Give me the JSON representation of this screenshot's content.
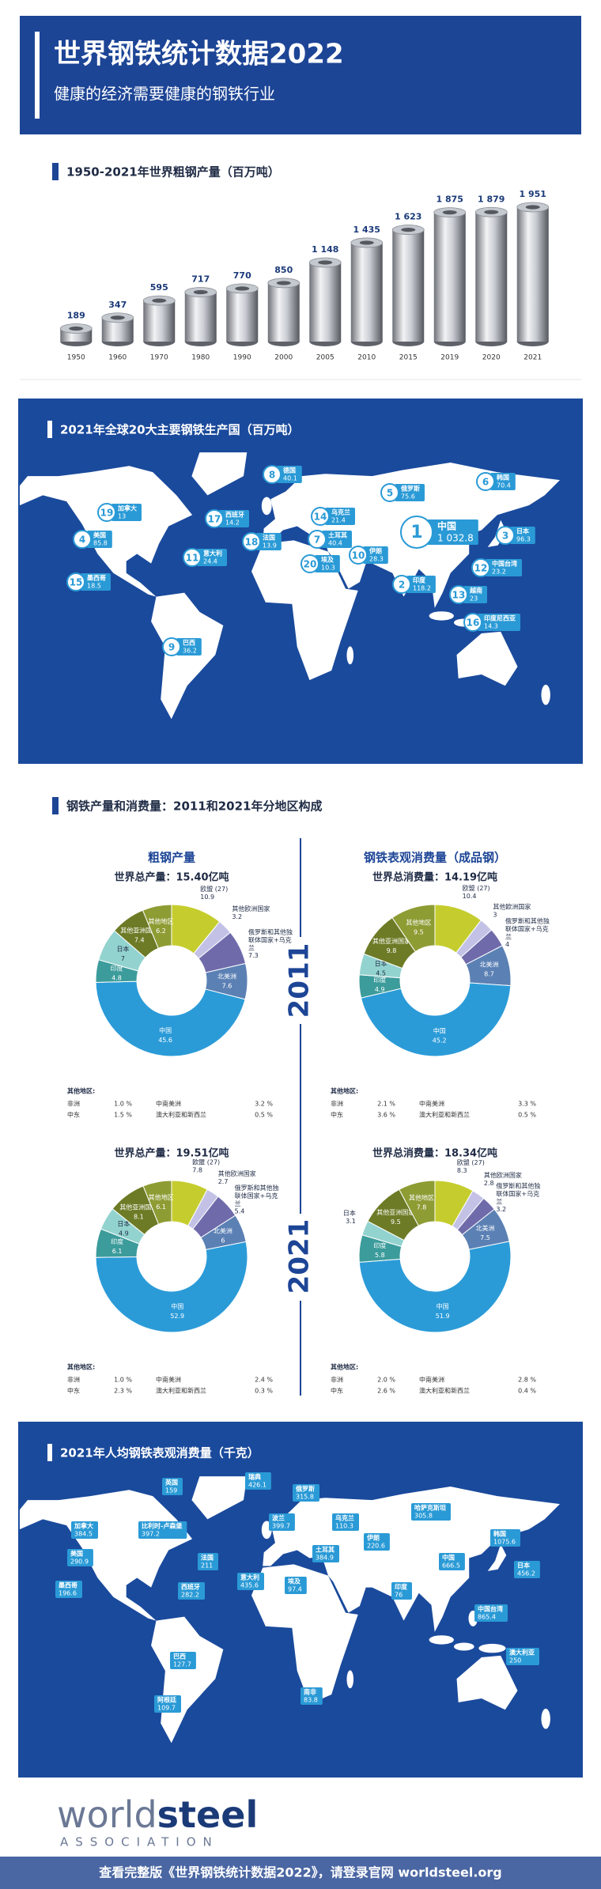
{
  "header": {
    "title": "世界钢铁统计数据2022",
    "subtitle": "健康的经济需要健康的钢铁行业"
  },
  "chart_data": [
    {
      "type": "bar",
      "title": "1950-2021年世界粗钢产量（百万吨）",
      "categories": [
        "1950",
        "1960",
        "1970",
        "1980",
        "1990",
        "2000",
        "2005",
        "2010",
        "2015",
        "2019",
        "2020",
        "2021"
      ],
      "values": [
        189,
        347,
        595,
        717,
        770,
        850,
        1148,
        1435,
        1623,
        1875,
        1879,
        1951
      ],
      "value_labels": [
        "189",
        "347",
        "595",
        "717",
        "770",
        "850",
        "1 148",
        "1 435",
        "1 623",
        "1 875",
        "1 879",
        "1 951"
      ],
      "color": "#c4c8cf"
    },
    {
      "type": "pie",
      "total": "世界总产量：15.40亿吨",
      "categories": [
        "欧盟 (27)",
        "其他欧洲国家",
        "俄罗斯和其他独联体国家+乌克兰",
        "北美洲",
        "中国",
        "印度",
        "日本",
        "其他亚洲国家",
        "其他地区"
      ],
      "values": [
        10.9,
        3.2,
        7.3,
        7.6,
        45.6,
        4.8,
        7.0,
        7.4,
        6.2
      ],
      "colors": [
        "#c5cd2e",
        "#c3c2e6",
        "#6f6bab",
        "#5b80b4",
        "#2b9bd8",
        "#3c9c9b",
        "#93d3cf",
        "#6d7b26",
        "#8e9c34"
      ],
      "notes": [
        {
          "name": "非洲",
          "value": "1.0 %"
        },
        {
          "name": "中东",
          "value": "1.5 %"
        },
        {
          "name": "中南美洲",
          "value": "3.2 %"
        },
        {
          "name": "澳大利亚和新西兰",
          "value": "0.5 %"
        }
      ]
    },
    {
      "type": "pie",
      "total": "世界总消费量：14.19亿吨",
      "categories": [
        "欧盟 (27)",
        "其他欧洲国家",
        "俄罗斯和其他独联体国家+乌克兰",
        "北美洲",
        "中国",
        "印度",
        "日本",
        "其他亚洲国家",
        "其他地区"
      ],
      "values": [
        10.4,
        3.0,
        4.0,
        8.7,
        45.2,
        4.9,
        4.5,
        9.8,
        9.5
      ],
      "colors": [
        "#c5cd2e",
        "#c3c2e6",
        "#6f6bab",
        "#5b80b4",
        "#2b9bd8",
        "#3c9c9b",
        "#93d3cf",
        "#6d7b26",
        "#8e9c34"
      ],
      "notes": [
        {
          "name": "非洲",
          "value": "2.1 %"
        },
        {
          "name": "中东",
          "value": "3.6 %"
        },
        {
          "name": "中南美洲",
          "value": "3.3 %"
        },
        {
          "name": "澳大利亚和新西兰",
          "value": "0.5 %"
        }
      ]
    },
    {
      "type": "pie",
      "total": "世界总产量：19.51亿吨",
      "categories": [
        "欧盟 (27)",
        "其他欧洲国家",
        "俄罗斯和其他独联体国家+乌克兰",
        "北美洲",
        "中国",
        "印度",
        "日本",
        "其他亚洲国家",
        "其他地区"
      ],
      "values": [
        7.8,
        2.7,
        5.4,
        6.0,
        52.9,
        6.1,
        4.9,
        8.1,
        6.1
      ],
      "colors": [
        "#c5cd2e",
        "#c3c2e6",
        "#6f6bab",
        "#5b80b4",
        "#2b9bd8",
        "#3c9c9b",
        "#93d3cf",
        "#6d7b26",
        "#8e9c34"
      ],
      "notes": [
        {
          "name": "非洲",
          "value": "1.0 %"
        },
        {
          "name": "中东",
          "value": "2.3 %"
        },
        {
          "name": "中南美洲",
          "value": "2.4 %"
        },
        {
          "name": "澳大利亚和新西兰",
          "value": "0.3 %"
        }
      ]
    },
    {
      "type": "pie",
      "total": "世界总消费量：18.34亿吨",
      "categories": [
        "欧盟 (27)",
        "其他欧洲国家",
        "俄罗斯和其他独联体国家+乌克兰",
        "北美洲",
        "中国",
        "印度",
        "日本",
        "其他亚洲国家",
        "其他地区"
      ],
      "values": [
        8.3,
        2.8,
        3.2,
        7.5,
        51.9,
        5.8,
        3.1,
        9.5,
        7.8
      ],
      "colors": [
        "#c5cd2e",
        "#c3c2e6",
        "#6f6bab",
        "#5b80b4",
        "#2b9bd8",
        "#3c9c9b",
        "#93d3cf",
        "#6d7b26",
        "#8e9c34"
      ],
      "notes": [
        {
          "name": "非洲",
          "value": "2.0 %"
        },
        {
          "name": "中东",
          "value": "2.6 %"
        },
        {
          "name": "中南美洲",
          "value": "2.8 %"
        },
        {
          "name": "澳大利亚和新西兰",
          "value": "0.4 %"
        }
      ]
    }
  ],
  "producers": {
    "title": "2021年全球20大主要钢铁生产国（百万吨）",
    "markers": [
      {
        "rank": 1,
        "name": "中国",
        "value": {
          "value": 1032.8,
          "label": "1 032.8"
        }
      },
      {
        "rank": 2,
        "name": "印度",
        "value": 118.2
      },
      {
        "rank": 3,
        "name": "日本",
        "value": 96.3
      },
      {
        "rank": 4,
        "name": "美国",
        "value": 85.8
      },
      {
        "rank": 5,
        "name": "俄罗斯",
        "value": 75.6
      },
      {
        "rank": 6,
        "name": "韩国",
        "value": 70.4
      },
      {
        "rank": 7,
        "name": "土耳其",
        "value": 40.4
      },
      {
        "rank": 8,
        "name": "德国",
        "value": 40.1
      },
      {
        "rank": 9,
        "name": "巴西",
        "value": 36.2
      },
      {
        "rank": 10,
        "name": "伊朗",
        "value": 28.3
      },
      {
        "rank": 11,
        "name": "意大利",
        "value": 24.4
      },
      {
        "rank": 12,
        "name": "中国台湾",
        "value": 23.2
      },
      {
        "rank": 13,
        "name": "越南",
        "value": 23.0
      },
      {
        "rank": 14,
        "name": "乌克兰",
        "value": 21.4
      },
      {
        "rank": 15,
        "name": "墨西哥",
        "value": 18.5
      },
      {
        "rank": 16,
        "name": "印度尼西亚",
        "value": 14.3
      },
      {
        "rank": 17,
        "name": "西班牙",
        "value": 14.2
      },
      {
        "rank": 18,
        "name": "法国",
        "value": 13.9
      },
      {
        "rank": 19,
        "name": "加拿大",
        "value": 13.0
      },
      {
        "rank": 20,
        "name": "埃及",
        "value": 10.3
      }
    ]
  },
  "regional": {
    "title": "钢铁产量和消费量：2011和2021年分地区构成",
    "columns": [
      "粗钢产量",
      "钢铁表观消费量（成品钢）"
    ],
    "years": [
      "2011",
      "2021"
    ],
    "notes_title": "其他地区:"
  },
  "per_capita": {
    "title": "2021年人均钢铁表观消费量（千克）",
    "markers": [
      {
        "name": "加拿大",
        "value": 384.5
      },
      {
        "name": "美国",
        "value": 290.9
      },
      {
        "name": "墨西哥",
        "value": 196.6
      },
      {
        "name": "英国",
        "value": 159.0
      },
      {
        "name": "比利时-卢森堡",
        "value": 397.2
      },
      {
        "name": "法国",
        "value": 211.0
      },
      {
        "name": "西班牙",
        "value": 282.2
      },
      {
        "name": "意大利",
        "value": 435.6
      },
      {
        "name": "瑞典",
        "value": 426.1
      },
      {
        "name": "俄罗斯",
        "value": 315.8
      },
      {
        "name": "波兰",
        "value": 399.7
      },
      {
        "name": "乌克兰",
        "value": 110.3
      },
      {
        "name": "土耳其",
        "value": 384.9
      },
      {
        "name": "伊朗",
        "value": 220.6
      },
      {
        "name": "埃及",
        "value": 97.4
      },
      {
        "name": "哈萨克斯坦",
        "value": 305.8
      },
      {
        "name": "印度",
        "value": 76.0
      },
      {
        "name": "中国",
        "value": 666.5
      },
      {
        "name": "韩国",
        "value": 1075.6
      },
      {
        "name": "日本",
        "value": 456.2
      },
      {
        "name": "中国台湾",
        "value": 865.4
      },
      {
        "name": "巴西",
        "value": 127.7
      },
      {
        "name": "阿根廷",
        "value": 109.7
      },
      {
        "name": "南非",
        "value": 83.8
      },
      {
        "name": "澳大利亚",
        "value": 250.0
      }
    ]
  },
  "logo": {
    "word1": "world",
    "word2": "steel",
    "sub": "ASSOCIATION"
  },
  "footer": "查看完整版《世界钢铁统计数据2022》，请登录官网 worldsteel.org"
}
